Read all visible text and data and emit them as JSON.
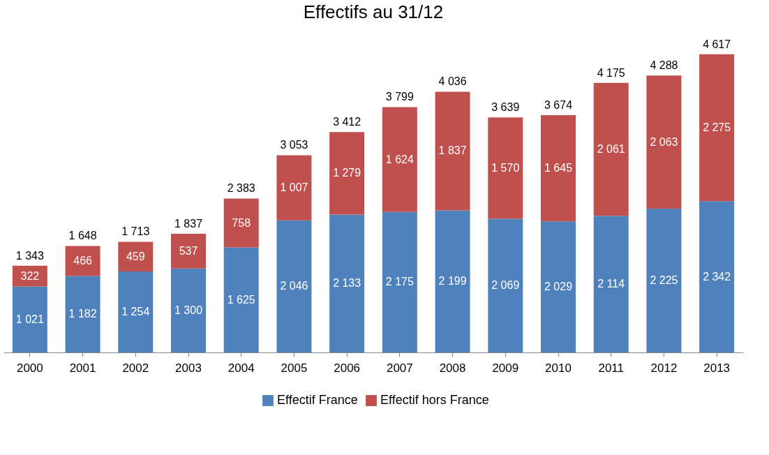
{
  "chart_data": {
    "type": "bar",
    "title": "Effectifs au 31/12",
    "stacked": true,
    "legend": "bottom",
    "categories": [
      "2000",
      "2001",
      "2002",
      "2003",
      "2004",
      "2005",
      "2006",
      "2007",
      "2008",
      "2009",
      "2010",
      "2011",
      "2012",
      "2013"
    ],
    "series": [
      {
        "name": "Effectif France",
        "color": "#4f81bd",
        "values": [
          1021,
          1182,
          1254,
          1300,
          1625,
          2046,
          2133,
          2175,
          2199,
          2069,
          2029,
          2114,
          2225,
          2342
        ],
        "value_labels": [
          "1 021",
          "1 182",
          "1 254",
          "1 300",
          "1 625",
          "2 046",
          "2 133",
          "2 175",
          "2 199",
          "2 069",
          "2 029",
          "2 114",
          "2 225",
          "2 342"
        ]
      },
      {
        "name": "Effectif hors France",
        "color": "#c0504d",
        "values": [
          322,
          466,
          459,
          537,
          758,
          1007,
          1279,
          1624,
          1837,
          1570,
          1645,
          2061,
          2063,
          2275
        ],
        "value_labels": [
          "322",
          "466",
          "459",
          "537",
          "758",
          "1 007",
          "1 279",
          "1 624",
          "1 837",
          "1 570",
          "1 645",
          "2 061",
          "2 063",
          "2 275"
        ]
      }
    ],
    "totals": [
      "1 343",
      "1 648",
      "1 713",
      "1 837",
      "2 383",
      "3 053",
      "3 412",
      "3 799",
      "4 036",
      "3 639",
      "3 674",
      "4 175",
      "4 288",
      "4 617"
    ]
  }
}
